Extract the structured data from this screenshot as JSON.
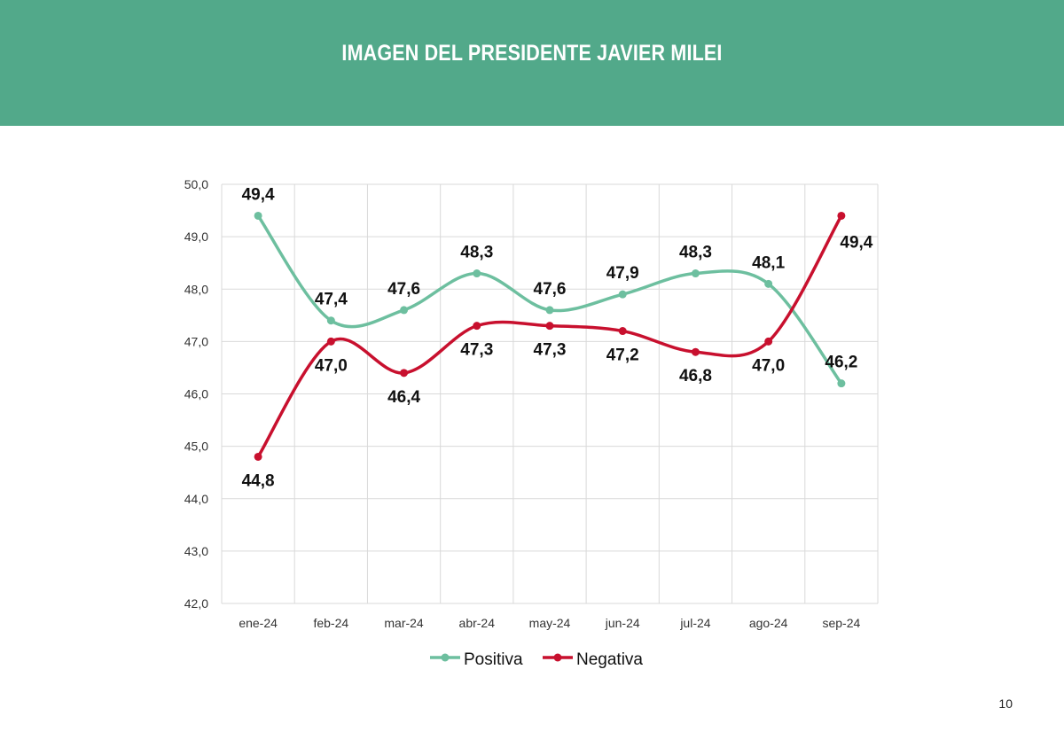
{
  "header": {
    "title": "IMAGEN DEL PRESIDENTE JAVIER MILEI"
  },
  "colors": {
    "header_bg": "#52a98a",
    "positiva": "#6dbf9f",
    "negativa": "#c8102e",
    "grid": "#d9d9d9"
  },
  "page_number": "10",
  "chart_data": {
    "type": "line",
    "title": "",
    "xlabel": "",
    "ylabel": "",
    "categories": [
      "ene-24",
      "feb-24",
      "mar-24",
      "abr-24",
      "may-24",
      "jun-24",
      "jul-24",
      "ago-24",
      "sep-24"
    ],
    "ylim": [
      42.0,
      50.0
    ],
    "yticks": [
      "42,0",
      "43,0",
      "44,0",
      "45,0",
      "46,0",
      "47,0",
      "48,0",
      "49,0",
      "50,0"
    ],
    "grid": true,
    "legend_position": "bottom",
    "series": [
      {
        "name": "Positiva",
        "color": "#6dbf9f",
        "values": [
          49.4,
          47.4,
          47.6,
          48.3,
          47.6,
          47.9,
          48.3,
          48.1,
          46.2
        ],
        "labels": [
          "49,4",
          "47,4",
          "47,6",
          "48,3",
          "47,6",
          "47,9",
          "48,3",
          "48,1",
          "46,2"
        ]
      },
      {
        "name": "Negativa",
        "color": "#c8102e",
        "values": [
          44.8,
          47.0,
          46.4,
          47.3,
          47.3,
          47.2,
          46.8,
          47.0,
          49.4
        ],
        "labels": [
          "44,8",
          "47,0",
          "46,4",
          "47,3",
          "47,3",
          "47,2",
          "46,8",
          "47,0",
          "49,4"
        ]
      }
    ]
  }
}
